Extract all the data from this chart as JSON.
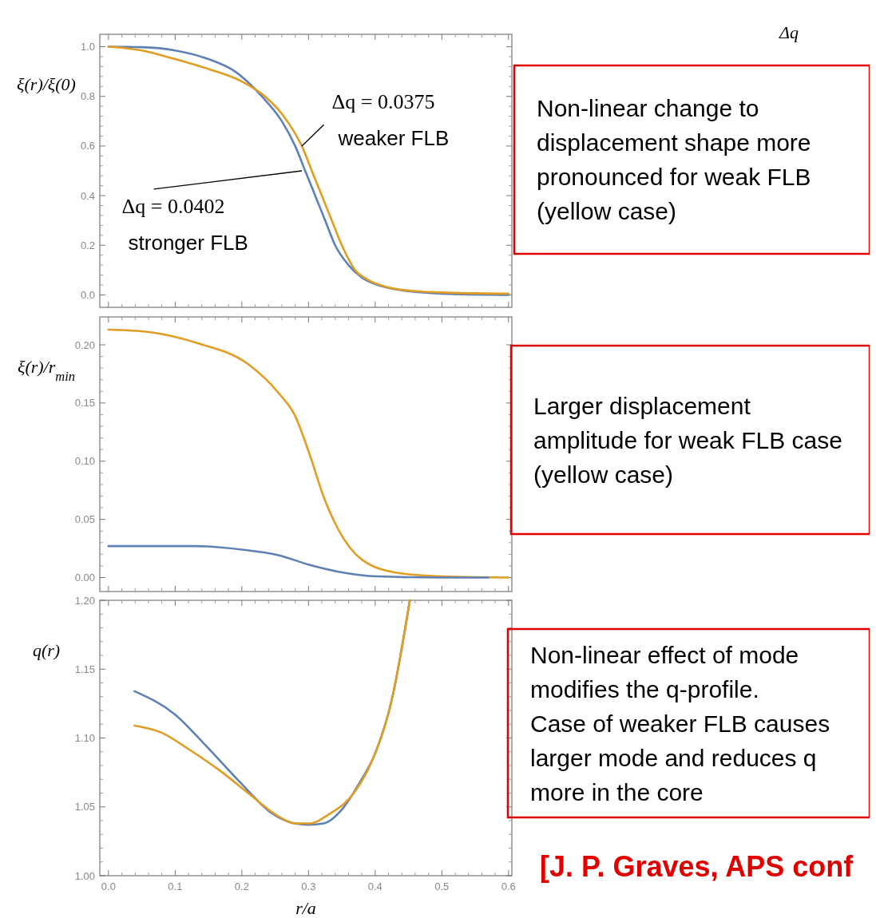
{
  "chart_data": [
    {
      "type": "line",
      "ylabel": "ξ(r)/ξ(0)",
      "xlim": [
        -0.013,
        0.605
      ],
      "ylim": [
        -0.05,
        1.05
      ],
      "xticks": [
        {
          "value": 0,
          "label": null
        },
        {
          "value": 0.1,
          "label": null
        },
        {
          "value": 0.2,
          "label": null
        },
        {
          "value": 0.3,
          "label": null
        },
        {
          "value": 0.4,
          "label": null
        },
        {
          "value": 0.5,
          "label": null
        },
        {
          "value": 0.6,
          "label": null
        }
      ],
      "yticks": [
        {
          "value": 0,
          "label": "0.0"
        },
        {
          "value": 0.2,
          "label": "0.2"
        },
        {
          "value": 0.4,
          "label": "0.4"
        },
        {
          "value": 0.6,
          "label": "0.6"
        },
        {
          "value": 0.8,
          "label": "0.8"
        },
        {
          "value": 1,
          "label": "1.0"
        }
      ],
      "tick_labels": "y",
      "grid": false,
      "line_style": "solid",
      "marker": "none",
      "series": [
        {
          "color": "#5e81b5",
          "x": [
            0,
            0.05,
            0.1,
            0.15,
            0.19,
            0.23,
            0.26,
            0.28,
            0.295,
            0.31,
            0.325,
            0.34,
            0.36,
            0.38,
            0.41,
            0.45,
            0.5,
            0.6
          ],
          "values": [
            1,
            0.998,
            0.985,
            0.95,
            0.9,
            0.8,
            0.7,
            0.6,
            0.5,
            0.4,
            0.3,
            0.2,
            0.12,
            0.07,
            0.035,
            0.015,
            0.005,
            0
          ]
        },
        {
          "color": "#e19c24",
          "x": [
            0,
            0.05,
            0.1,
            0.15,
            0.2,
            0.23,
            0.26,
            0.28,
            0.29,
            0.305,
            0.32,
            0.335,
            0.35,
            0.37,
            0.39,
            0.42,
            0.46,
            0.5,
            0.6
          ],
          "values": [
            1,
            0.985,
            0.95,
            0.91,
            0.86,
            0.81,
            0.73,
            0.65,
            0.6,
            0.5,
            0.4,
            0.3,
            0.2,
            0.1,
            0.06,
            0.03,
            0.015,
            0.01,
            0.005
          ]
        }
      ],
      "annotations": [
        {
          "text": "Δq = 0.0375\nweaker FLB",
          "x": 0.29,
          "y": 0.6
        },
        {
          "text": "Δq = 0.0402\nstronger FLB",
          "x": 0.29,
          "y": 0.5
        },
        "Non-linear change to displacement shape more pronounced for weak FLB (yellow case)",
        "Δq"
      ]
    },
    {
      "type": "line",
      "ylabel": "ξ(r)/r$_{min}$",
      "xlim": [
        -0.013,
        0.605
      ],
      "ylim": [
        -0.012,
        0.224
      ],
      "xticks": [
        {
          "value": 0,
          "label": null
        },
        {
          "value": 0.1,
          "label": null
        },
        {
          "value": 0.2,
          "label": null
        },
        {
          "value": 0.3,
          "label": null
        },
        {
          "value": 0.4,
          "label": null
        },
        {
          "value": 0.5,
          "label": null
        },
        {
          "value": 0.6,
          "label": null
        }
      ],
      "yticks": [
        {
          "value": 0,
          "label": "0.00"
        },
        {
          "value": 0.05,
          "label": "0.05"
        },
        {
          "value": 0.1,
          "label": "0.10"
        },
        {
          "value": 0.15,
          "label": "0.15"
        },
        {
          "value": 0.2,
          "label": "0.20"
        }
      ],
      "tick_labels": "y",
      "grid": false,
      "line_style": "solid",
      "marker": "none",
      "series": [
        {
          "color": "#e19c24",
          "x": [
            0,
            0.061,
            0.136,
            0.208,
            0.256,
            0.279,
            0.301,
            0.323,
            0.345,
            0.381,
            0.434,
            0.5,
            0.6
          ],
          "values": [
            0.213,
            0.211,
            0.201,
            0.184,
            0.158,
            0.14,
            0.107,
            0.069,
            0.041,
            0.015,
            0.004,
            0.001,
            0
          ]
        },
        {
          "color": "#5e81b5",
          "x": [
            0,
            0.132,
            0.2,
            0.256,
            0.301,
            0.345,
            0.403,
            0.5,
            0.57
          ],
          "values": [
            0.027,
            0.027,
            0.024,
            0.019,
            0.011,
            0.005,
            0.001,
            0,
            0
          ]
        }
      ],
      "annotations": [
        "Larger displacement amplitude for weak FLB case (yellow case)"
      ]
    },
    {
      "type": "line",
      "ylabel": "q(r)",
      "xlabel": "r/a",
      "xlim": [
        -0.013,
        0.605
      ],
      "ylim": [
        1,
        1.2
      ],
      "xticks": [
        {
          "value": 0,
          "label": "0.0"
        },
        {
          "value": 0.1,
          "label": "0.1"
        },
        {
          "value": 0.2,
          "label": "0.2"
        },
        {
          "value": 0.3,
          "label": "0.3"
        },
        {
          "value": 0.4,
          "label": "0.4"
        },
        {
          "value": 0.5,
          "label": "0.5"
        },
        {
          "value": 0.6,
          "label": "0.6"
        }
      ],
      "yticks": [
        {
          "value": 1,
          "label": "1.00"
        },
        {
          "value": 1.05,
          "label": "1.05"
        },
        {
          "value": 1.1,
          "label": "1.10"
        },
        {
          "value": 1.15,
          "label": "1.15"
        },
        {
          "value": 1.2,
          "label": "1.20"
        }
      ],
      "grid": false,
      "line_style": "solid",
      "marker": "none",
      "series": [
        {
          "color": "#5e81b5",
          "x": [
            0.039,
            0.1,
            0.145,
            0.199,
            0.243,
            0.279,
            0.3,
            0.323,
            0.35,
            0.376,
            0.401,
            0.425,
            0.452
          ],
          "values": [
            1.134,
            1.117,
            1.095,
            1.067,
            1.046,
            1.038,
            1.037,
            1.038,
            1.048,
            1.067,
            1.09,
            1.128,
            1.2
          ]
        },
        {
          "color": "#e19c24",
          "x": [
            0.039,
            0.079,
            0.123,
            0.168,
            0.212,
            0.252,
            0.279,
            0.301,
            0.332,
            0.368,
            0.394,
            0.425,
            0.452
          ],
          "values": [
            1.109,
            1.104,
            1.091,
            1.076,
            1.059,
            1.044,
            1.038,
            1.038,
            1.045,
            1.06,
            1.082,
            1.128,
            1.2
          ]
        }
      ],
      "annotations": [
        "Non-linear effect of mode modifies the q-profile. Case of weaker FLB causes larger mode and reduces q more in the core",
        "[J. P. Graves, APS conf"
      ]
    }
  ]
}
